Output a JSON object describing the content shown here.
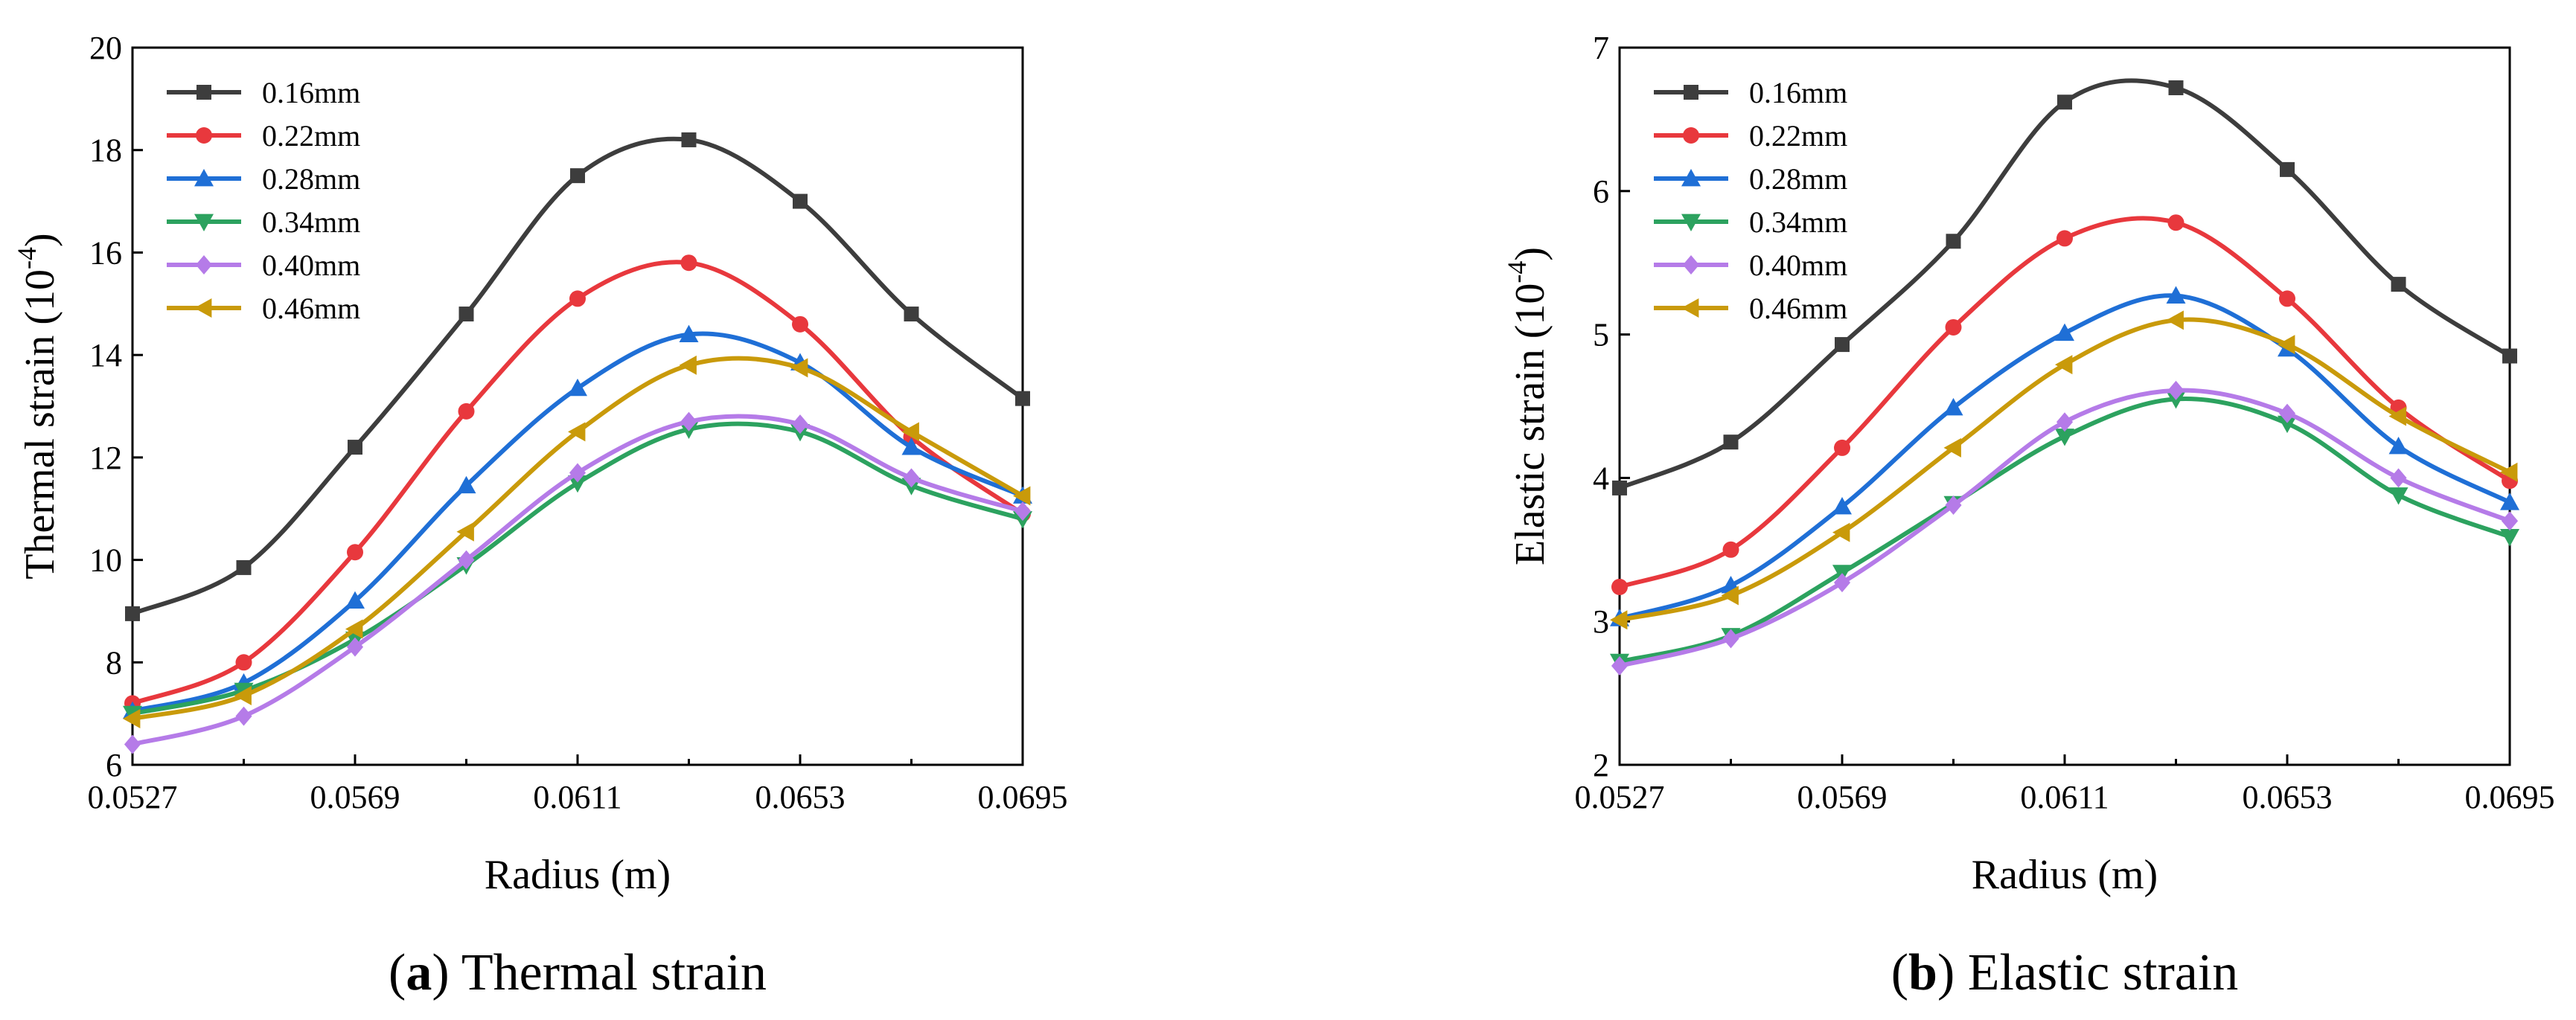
{
  "figure": {
    "panels": [
      {
        "caption": {
          "letter": "a",
          "text": "Thermal strain"
        },
        "chart_data": {
          "type": "line",
          "xlabel": "Radius (m)",
          "ylabel_base": "Thermal strain (10",
          "ylabel_exp": "-4",
          "ylabel_close": ")",
          "xlim": [
            0.0527,
            0.0695
          ],
          "ylim": [
            6,
            20
          ],
          "xticks": [
            0.0527,
            0.0569,
            0.0611,
            0.0653,
            0.0695
          ],
          "xtick_labels": [
            "0.0527",
            "0.0569",
            "0.0611",
            "0.0653",
            "0.0695"
          ],
          "yticks": [
            6,
            8,
            10,
            12,
            14,
            16,
            18,
            20
          ],
          "ytick_labels": [
            "6",
            "8",
            "10",
            "12",
            "14",
            "16",
            "18",
            "20"
          ],
          "legend_position": "top-left",
          "x": [
            0.0527,
            0.0548,
            0.0569,
            0.059,
            0.0611,
            0.0632,
            0.0653,
            0.0674,
            0.0695
          ],
          "series": [
            {
              "name": "0.16mm",
              "color": "#3d3d3d",
              "marker": "square",
              "values": [
                8.95,
                9.85,
                12.2,
                14.8,
                17.5,
                18.2,
                17.0,
                14.8,
                13.15
              ]
            },
            {
              "name": "0.22mm",
              "color": "#e8383d",
              "marker": "circle",
              "values": [
                7.2,
                8.0,
                10.15,
                12.9,
                15.1,
                15.8,
                14.6,
                12.4,
                10.9
              ]
            },
            {
              "name": "0.28mm",
              "color": "#1f6fd6",
              "marker": "triangle-up",
              "values": [
                7.05,
                7.6,
                9.2,
                11.45,
                13.35,
                14.4,
                13.85,
                12.2,
                11.25
              ]
            },
            {
              "name": "0.34mm",
              "color": "#2ca25f",
              "marker": "triangle-down",
              "values": [
                7.0,
                7.45,
                8.45,
                9.9,
                11.5,
                12.55,
                12.5,
                11.45,
                10.8
              ]
            },
            {
              "name": "0.40mm",
              "color": "#b57be8",
              "marker": "diamond",
              "values": [
                6.4,
                6.95,
                8.3,
                10.0,
                11.7,
                12.7,
                12.65,
                11.6,
                10.95
              ]
            },
            {
              "name": "0.46mm",
              "color": "#c99a0a",
              "marker": "triangle-left",
              "values": [
                6.9,
                7.35,
                8.65,
                10.55,
                12.5,
                13.8,
                13.75,
                12.5,
                11.25
              ]
            }
          ]
        }
      },
      {
        "caption": {
          "letter": "b",
          "text": "Elastic strain"
        },
        "chart_data": {
          "type": "line",
          "xlabel": "Radius (m)",
          "ylabel_base": "Elastic strain (10",
          "ylabel_exp": "-4",
          "ylabel_close": ")",
          "xlim": [
            0.0527,
            0.0695
          ],
          "ylim": [
            2,
            7
          ],
          "xticks": [
            0.0527,
            0.0569,
            0.0611,
            0.0653,
            0.0695
          ],
          "xtick_labels": [
            "0.0527",
            "0.0569",
            "0.0611",
            "0.0653",
            "0.0695"
          ],
          "yticks": [
            2,
            3,
            4,
            5,
            6,
            7
          ],
          "ytick_labels": [
            "2",
            "3",
            "4",
            "5",
            "6",
            "7"
          ],
          "legend_position": "top-left",
          "x": [
            0.0527,
            0.0548,
            0.0569,
            0.059,
            0.0611,
            0.0632,
            0.0653,
            0.0674,
            0.0695
          ],
          "series": [
            {
              "name": "0.16mm",
              "color": "#3d3d3d",
              "marker": "square",
              "values": [
                3.93,
                4.25,
                4.93,
                5.65,
                6.62,
                6.72,
                6.15,
                5.35,
                4.85
              ]
            },
            {
              "name": "0.22mm",
              "color": "#e8383d",
              "marker": "circle",
              "values": [
                3.24,
                3.5,
                4.21,
                5.05,
                5.67,
                5.78,
                5.25,
                4.49,
                3.98
              ]
            },
            {
              "name": "0.28mm",
              "color": "#1f6fd6",
              "marker": "triangle-up",
              "values": [
                3.02,
                3.25,
                3.8,
                4.49,
                5.01,
                5.27,
                4.9,
                4.22,
                3.83
              ]
            },
            {
              "name": "0.34mm",
              "color": "#2ca25f",
              "marker": "triangle-down",
              "values": [
                2.72,
                2.9,
                3.34,
                3.82,
                4.29,
                4.55,
                4.38,
                3.88,
                3.59
              ]
            },
            {
              "name": "0.40mm",
              "color": "#b57be8",
              "marker": "diamond",
              "values": [
                2.69,
                2.88,
                3.27,
                3.81,
                4.39,
                4.61,
                4.45,
                4.0,
                3.7
              ]
            },
            {
              "name": "0.46mm",
              "color": "#c99a0a",
              "marker": "triangle-left",
              "values": [
                3.01,
                3.18,
                3.62,
                4.21,
                4.79,
                5.1,
                4.93,
                4.43,
                4.04
              ]
            }
          ]
        }
      }
    ]
  }
}
